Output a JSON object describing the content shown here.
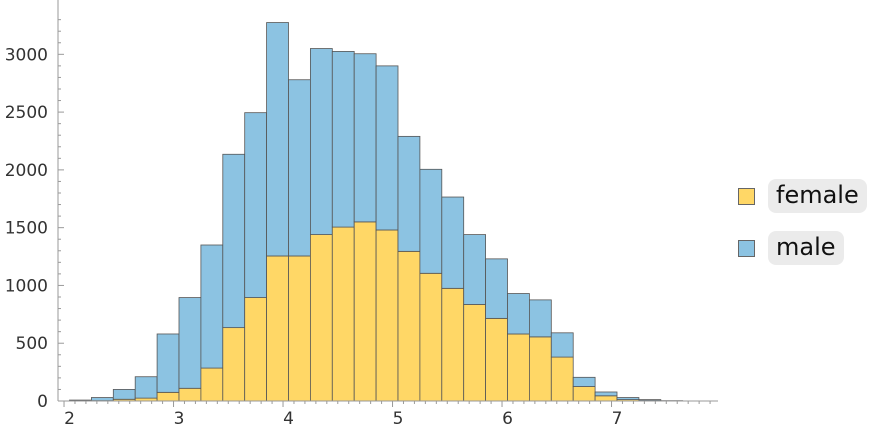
{
  "chart_data": {
    "type": "bar",
    "stacked": true,
    "bin_width": 0.2,
    "bin_starts": [
      2.0,
      2.2,
      2.4,
      2.6,
      2.8,
      3.0,
      3.2,
      3.4,
      3.6,
      3.8,
      4.0,
      4.2,
      4.4,
      4.6,
      4.8,
      5.0,
      5.2,
      5.4,
      5.6,
      5.8,
      6.0,
      6.2,
      6.4,
      6.6,
      6.8,
      7.0,
      7.2,
      7.4
    ],
    "series": [
      {
        "name": "female",
        "color": "#FFD766",
        "values": [
          0,
          3,
          15,
          25,
          75,
          110,
          285,
          635,
          895,
          1255,
          1255,
          1440,
          1505,
          1550,
          1480,
          1295,
          1105,
          975,
          835,
          715,
          580,
          555,
          380,
          125,
          45,
          12,
          4,
          1
        ]
      },
      {
        "name": "male",
        "color": "#8CC3E2",
        "values": [
          8,
          27,
          85,
          185,
          505,
          785,
          1065,
          1500,
          1600,
          2020,
          1525,
          1610,
          1520,
          1455,
          1420,
          995,
          900,
          790,
          605,
          515,
          350,
          320,
          210,
          80,
          33,
          18,
          8,
          2
        ]
      }
    ],
    "xlim": [
      1.95,
      7.95
    ],
    "ylim": [
      0,
      3300
    ],
    "x_ticks": [
      2,
      3,
      4,
      5,
      6,
      7
    ],
    "y_ticks": [
      0,
      500,
      1000,
      1500,
      2000,
      2500,
      3000
    ],
    "grid": false,
    "legend_position": "right"
  }
}
